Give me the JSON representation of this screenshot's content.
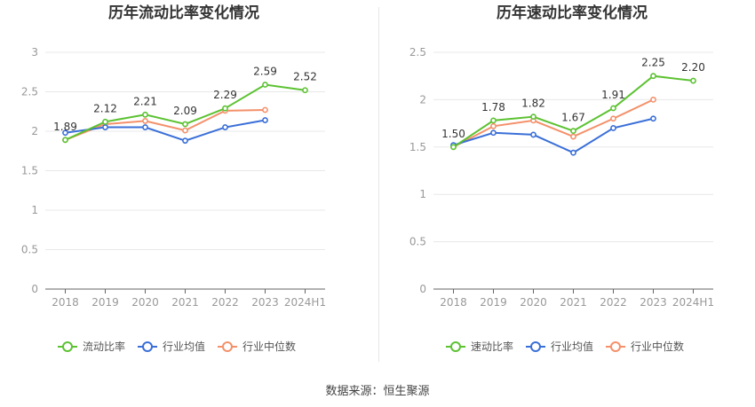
{
  "source_label": "数据来源：恒生聚源",
  "colors": {
    "green": "#5cc232",
    "blue": "#3a6fd8",
    "orange": "#f4906a",
    "grid": "#e8e8e8",
    "axis": "#666666",
    "tick": "#999999"
  },
  "chart_data": [
    {
      "type": "line",
      "title": "历年流动比率变化情况",
      "categories": [
        "2018",
        "2019",
        "2020",
        "2021",
        "2022",
        "2023",
        "2024H1"
      ],
      "ylim": [
        0,
        3
      ],
      "yticks": [
        "0",
        "0.5",
        "1",
        "1.5",
        "2",
        "2.5",
        "3"
      ],
      "grid": true,
      "legend_position": "bottom",
      "series": [
        {
          "name": "流动比率",
          "color": "#5cc232",
          "values": [
            1.89,
            2.12,
            2.21,
            2.09,
            2.29,
            2.59,
            2.52
          ],
          "data_labels": [
            "1.89",
            "2.12",
            "2.21",
            "2.09",
            "2.29",
            "2.59",
            "2.52"
          ]
        },
        {
          "name": "行业均值",
          "color": "#3a6fd8",
          "values": [
            1.98,
            2.05,
            2.05,
            1.88,
            2.05,
            2.14,
            null
          ]
        },
        {
          "name": "行业中位数",
          "color": "#f4906a",
          "values": [
            1.89,
            2.09,
            2.13,
            2.01,
            2.26,
            2.27,
            null
          ]
        }
      ]
    },
    {
      "type": "line",
      "title": "历年速动比率变化情况",
      "categories": [
        "2018",
        "2019",
        "2020",
        "2021",
        "2022",
        "2023",
        "2024H1"
      ],
      "ylim": [
        0,
        2.5
      ],
      "yticks": [
        "0",
        "0.5",
        "1",
        "1.5",
        "2",
        "2.5"
      ],
      "grid": true,
      "legend_position": "bottom",
      "series": [
        {
          "name": "速动比率",
          "color": "#5cc232",
          "values": [
            1.5,
            1.78,
            1.82,
            1.67,
            1.91,
            2.25,
            2.2
          ],
          "data_labels": [
            "1.50",
            "1.78",
            "1.82",
            "1.67",
            "1.91",
            "2.25",
            "2.20"
          ]
        },
        {
          "name": "行业均值",
          "color": "#3a6fd8",
          "values": [
            1.52,
            1.65,
            1.63,
            1.44,
            1.7,
            1.8,
            null
          ]
        },
        {
          "name": "行业中位数",
          "color": "#f4906a",
          "values": [
            1.5,
            1.72,
            1.78,
            1.61,
            1.8,
            2.0,
            null
          ]
        }
      ]
    }
  ]
}
